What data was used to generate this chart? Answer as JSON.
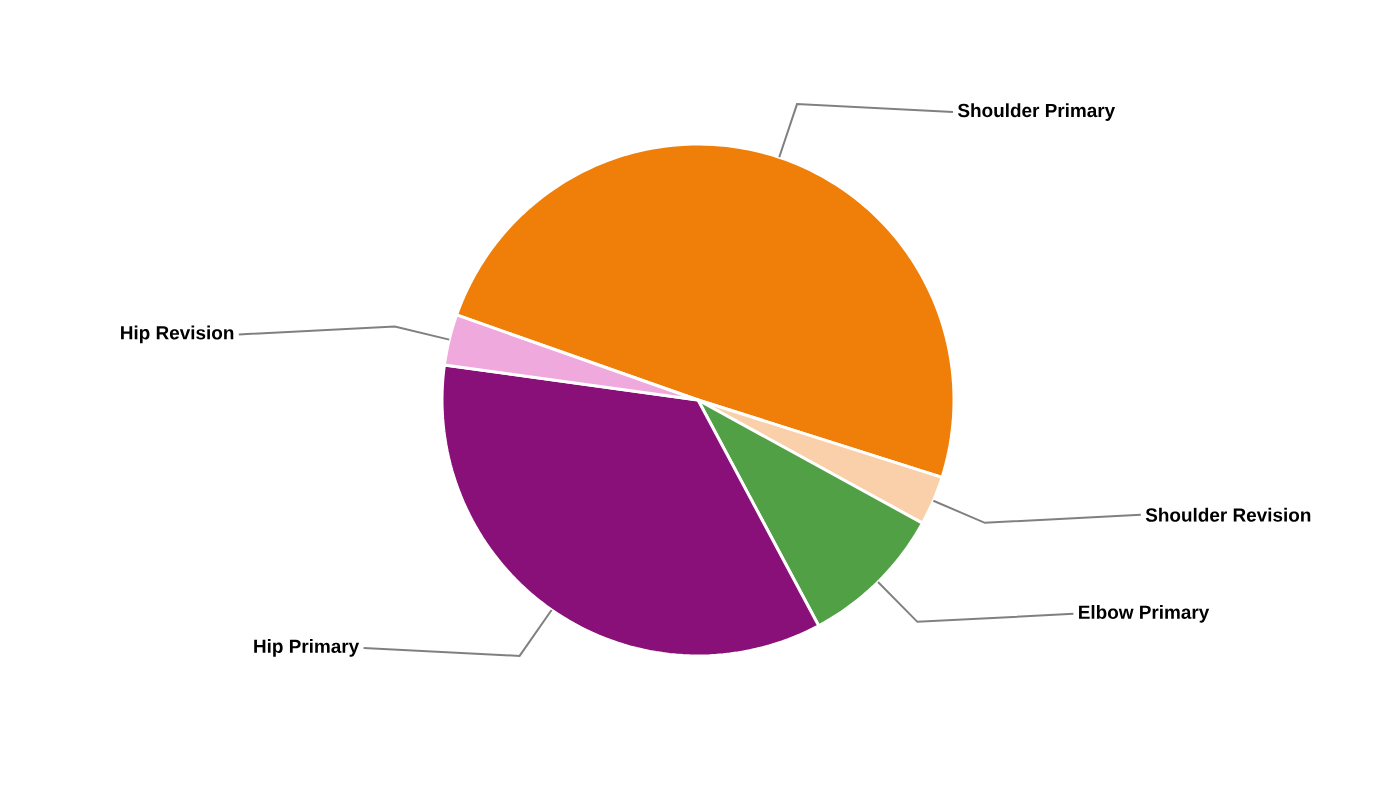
{
  "chart_data": {
    "type": "pie",
    "categories": [
      "Shoulder Primary",
      "Shoulder Revision",
      "Elbow Primary",
      "Hip Primary",
      "Hip Revision"
    ],
    "values": [
      49.5,
      3.1,
      9.2,
      35,
      3.2
    ],
    "colors": [
      "#f07f09",
      "#f9d0a9",
      "#52a045",
      "#8a1079",
      "#f0a9dc"
    ]
  }
}
